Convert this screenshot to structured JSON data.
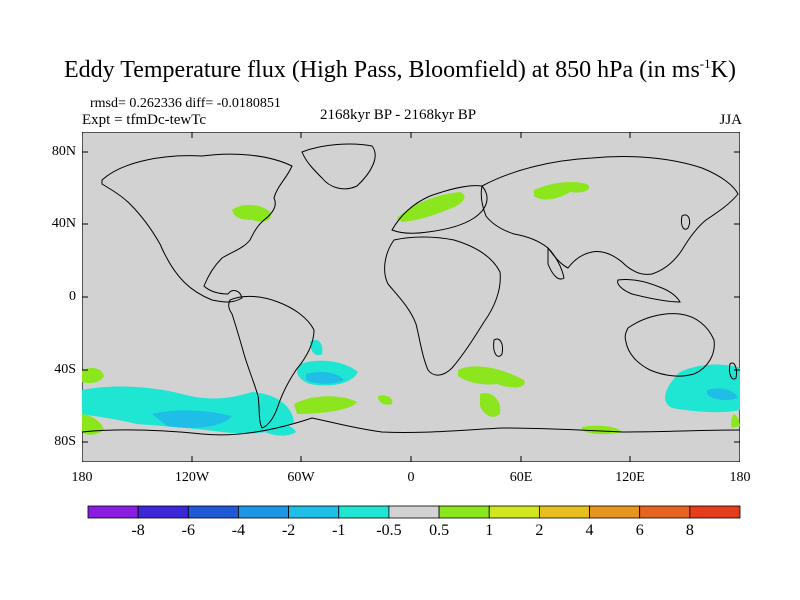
{
  "title_main": "Eddy Temperature flux (High Pass, Bloomfield) at 850 hPa (in ms",
  "title_sup": "-1",
  "title_end": "K)",
  "rmsd_line": "rmsd= 0.262336 diff= -0.0180851",
  "expt_line": "Expt = tfmDc-tewTc",
  "period": "2168kyr BP - 2168kyr BP",
  "season": "JJA",
  "lat_labels": [
    "80N",
    "40N",
    "0",
    "40S",
    "80S"
  ],
  "lon_labels": [
    "180",
    "120W",
    "60W",
    "0",
    "60E",
    "120E",
    "180"
  ],
  "colorbar": {
    "labels": [
      "-8",
      "-6",
      "-4",
      "-2",
      "-1",
      "-0.5",
      "0.5",
      "1",
      "2",
      "4",
      "6",
      "8"
    ],
    "colors": [
      "#8a1ee0",
      "#3c28d8",
      "#1e5ad8",
      "#1e96e6",
      "#1ebee6",
      "#1ee6d2",
      "#d2d2d2",
      "#8ce61e",
      "#d2e61e",
      "#e6be1e",
      "#e6961e",
      "#e6641e",
      "#e63c1e"
    ]
  },
  "colors": {
    "ocean_land": "#d2d2d2",
    "positive": "#8ce61e",
    "neg_light": "#1ee6d2",
    "neg_mid": "#1ebee6"
  }
}
